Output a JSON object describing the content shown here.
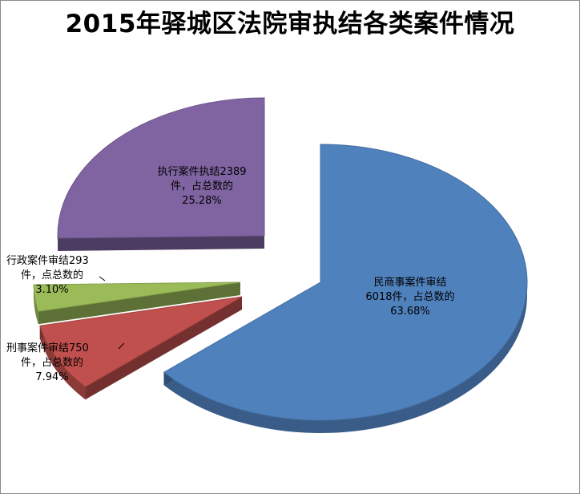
{
  "chart_data": {
    "type": "pie",
    "title": "2015年驿城区法院审执结各类案件情况",
    "exploded": true,
    "style": "3d",
    "slices": [
      {
        "name": "民商事案件审结",
        "value": 6018,
        "percent": 63.68,
        "color": "#4f81bd",
        "label_lines": [
          "民商事案件审结",
          "6018件，占总数的",
          "63.68%"
        ]
      },
      {
        "name": "刑事案件审结",
        "value": 750,
        "percent": 7.94,
        "color": "#c0504d",
        "label_lines": [
          "刑事案件审结750",
          "件，占总数的",
          "7.94%"
        ]
      },
      {
        "name": "行政案件审结",
        "value": 293,
        "percent": 3.1,
        "color": "#9bbb59",
        "label_lines": [
          "行政案件审结293",
          "件，点总数的",
          "3.10%"
        ]
      },
      {
        "name": "执行案件执结",
        "value": 2389,
        "percent": 25.28,
        "color": "#8064a2",
        "label_lines": [
          "执行案件执结2389",
          "件，占总数的",
          "25.28%"
        ]
      }
    ]
  }
}
